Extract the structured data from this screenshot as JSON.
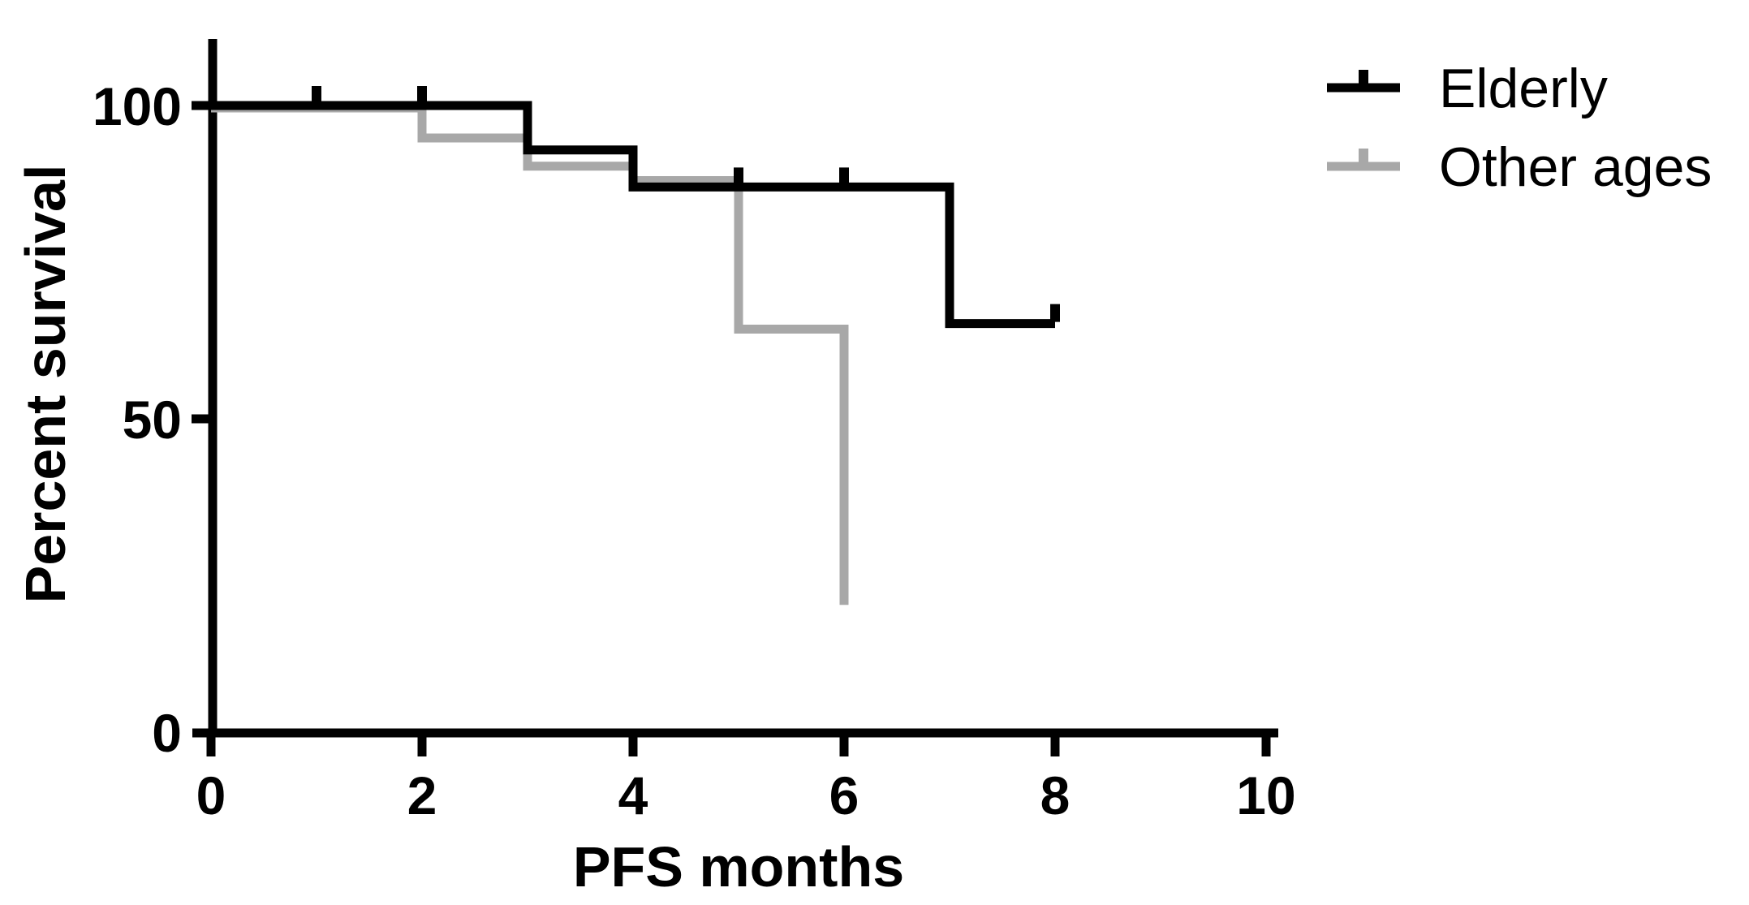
{
  "figure": {
    "background": "#ffffff",
    "accent_black": "#000000",
    "accent_gray": "#a8a8a8"
  },
  "chart_data": {
    "type": "line",
    "subtype": "kaplan-meier-step",
    "title": "",
    "xlabel": "PFS months",
    "ylabel": "Percent survival",
    "xlim": [
      0,
      10
    ],
    "ylim": [
      0,
      100
    ],
    "x_ticks": [
      0,
      2,
      4,
      6,
      8,
      10
    ],
    "y_ticks": [
      100,
      50,
      0
    ],
    "grid": "off",
    "legend_position": "top-right",
    "legend": [
      {
        "label": "Elderly",
        "color": "#000000",
        "marker": "line-with-censor-tick"
      },
      {
        "label": "Other ages",
        "color": "#a8a8a8",
        "marker": "line-with-censor-tick"
      }
    ],
    "series": [
      {
        "name": "Elderly",
        "color": "#000000",
        "steps": [
          {
            "x": 0,
            "y": 100
          },
          {
            "x": 3,
            "y": 92.9
          },
          {
            "x": 4,
            "y": 87.0
          },
          {
            "x": 7,
            "y": 65.2
          }
        ],
        "end_x": 8,
        "censor_marks": [
          {
            "x": 1,
            "y": 100
          },
          {
            "x": 2,
            "y": 100
          },
          {
            "x": 5,
            "y": 87.0
          },
          {
            "x": 6,
            "y": 87.0
          },
          {
            "x": 8,
            "y": 65.2
          }
        ]
      },
      {
        "name": "Other ages",
        "color": "#a8a8a8",
        "steps": [
          {
            "x": 0,
            "y": 100
          },
          {
            "x": 2,
            "y": 95.2
          },
          {
            "x": 3,
            "y": 90.7
          },
          {
            "x": 4,
            "y": 88.4
          },
          {
            "x": 5,
            "y": 64.7
          },
          {
            "x": 6,
            "y": 20.7
          }
        ],
        "end_x": 6,
        "censor_marks": []
      }
    ]
  }
}
